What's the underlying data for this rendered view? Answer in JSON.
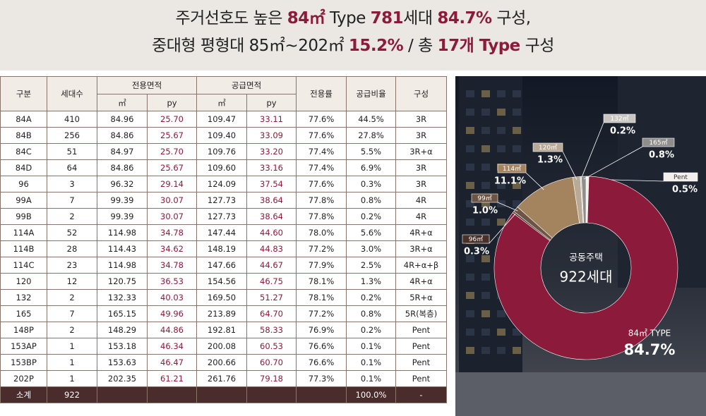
{
  "header": {
    "lines": [
      [
        {
          "text": "주거선호도 높은 "
        },
        {
          "text": "84㎡",
          "em": true
        },
        {
          "text": " Type "
        },
        {
          "text": "781",
          "em": true
        },
        {
          "text": "세대 "
        },
        {
          "text": "84.7%",
          "em": true
        },
        {
          "text": " 구성,"
        }
      ],
      [
        {
          "text": "중대형 평형대 85㎡~202㎡ "
        },
        {
          "text": "15.2%",
          "em": true
        },
        {
          "text": " / 총 "
        },
        {
          "text": "17개 Type",
          "em": true
        },
        {
          "text": " 구성"
        }
      ]
    ]
  },
  "table": {
    "header_top": [
      "구분",
      "세대수",
      "전용면적",
      "공급면적",
      "전용률",
      "공급비율",
      "구성"
    ],
    "header_sub": [
      "㎡",
      "py",
      "㎡",
      "py"
    ],
    "rows": [
      [
        "84A",
        "410",
        "84.96",
        "25.70",
        "109.47",
        "33.11",
        "77.6%",
        "44.5%",
        "3R"
      ],
      [
        "84B",
        "256",
        "84.86",
        "25.67",
        "109.40",
        "33.09",
        "77.6%",
        "27.8%",
        "3R"
      ],
      [
        "84C",
        "51",
        "84.97",
        "25.70",
        "109.76",
        "33.20",
        "77.4%",
        "5.5%",
        "3R+α"
      ],
      [
        "84D",
        "64",
        "84.86",
        "25.67",
        "109.60",
        "33.16",
        "77.4%",
        "6.9%",
        "3R"
      ],
      [
        "96",
        "3",
        "96.32",
        "29.14",
        "124.09",
        "37.54",
        "77.6%",
        "0.3%",
        "3R"
      ],
      [
        "99A",
        "7",
        "99.39",
        "30.07",
        "127.73",
        "38.64",
        "77.8%",
        "0.8%",
        "4R"
      ],
      [
        "99B",
        "2",
        "99.39",
        "30.07",
        "127.73",
        "38.64",
        "77.8%",
        "0.2%",
        "4R"
      ],
      [
        "114A",
        "52",
        "114.98",
        "34.78",
        "147.44",
        "44.60",
        "78.0%",
        "5.6%",
        "4R+α"
      ],
      [
        "114B",
        "28",
        "114.43",
        "34.62",
        "148.19",
        "44.83",
        "77.2%",
        "3.0%",
        "3R+α"
      ],
      [
        "114C",
        "23",
        "114.98",
        "34.78",
        "147.66",
        "44.67",
        "77.9%",
        "2.5%",
        "4R+α+β"
      ],
      [
        "120",
        "12",
        "120.75",
        "36.53",
        "154.56",
        "46.75",
        "78.1%",
        "1.3%",
        "4R+α"
      ],
      [
        "132",
        "2",
        "132.33",
        "40.03",
        "169.50",
        "51.27",
        "78.1%",
        "0.2%",
        "5R+α"
      ],
      [
        "165",
        "7",
        "165.15",
        "49.96",
        "213.89",
        "64.70",
        "77.2%",
        "0.8%",
        "5R(복층)"
      ],
      [
        "148P",
        "2",
        "148.29",
        "44.86",
        "192.81",
        "58.33",
        "76.9%",
        "0.2%",
        "Pent"
      ],
      [
        "153AP",
        "1",
        "153.18",
        "46.34",
        "200.08",
        "60.53",
        "76.6%",
        "0.1%",
        "Pent"
      ],
      [
        "153BP",
        "1",
        "153.63",
        "46.47",
        "200.66",
        "60.70",
        "76.6%",
        "0.1%",
        "Pent"
      ],
      [
        "202P",
        "1",
        "202.35",
        "61.21",
        "261.76",
        "79.18",
        "77.3%",
        "0.1%",
        "Pent"
      ]
    ],
    "total": {
      "label": "소계",
      "units": "922",
      "ratio": "100.0%",
      "composition": "-"
    }
  },
  "chart_data": {
    "type": "donut",
    "center_title": "공동주택",
    "center_value": "922세대",
    "categories": [
      "Pent",
      "84㎡ TYPE",
      "96㎡",
      "99㎡",
      "114㎡",
      "120㎡",
      "132㎡",
      "165㎡"
    ],
    "values": [
      0.5,
      84.7,
      0.3,
      1.0,
      11.1,
      1.3,
      0.2,
      0.8
    ],
    "value_labels": [
      "0.5%",
      "84.7%",
      "0.3%",
      "1.0%",
      "11.1%",
      "1.3%",
      "0.2%",
      "0.8%"
    ],
    "colors": [
      "#f2efec",
      "#8c1a3b",
      "#4a3028",
      "#6e5444",
      "#a4835f",
      "#b9aa98",
      "#c9c6c2",
      "#8f8e8c"
    ]
  }
}
